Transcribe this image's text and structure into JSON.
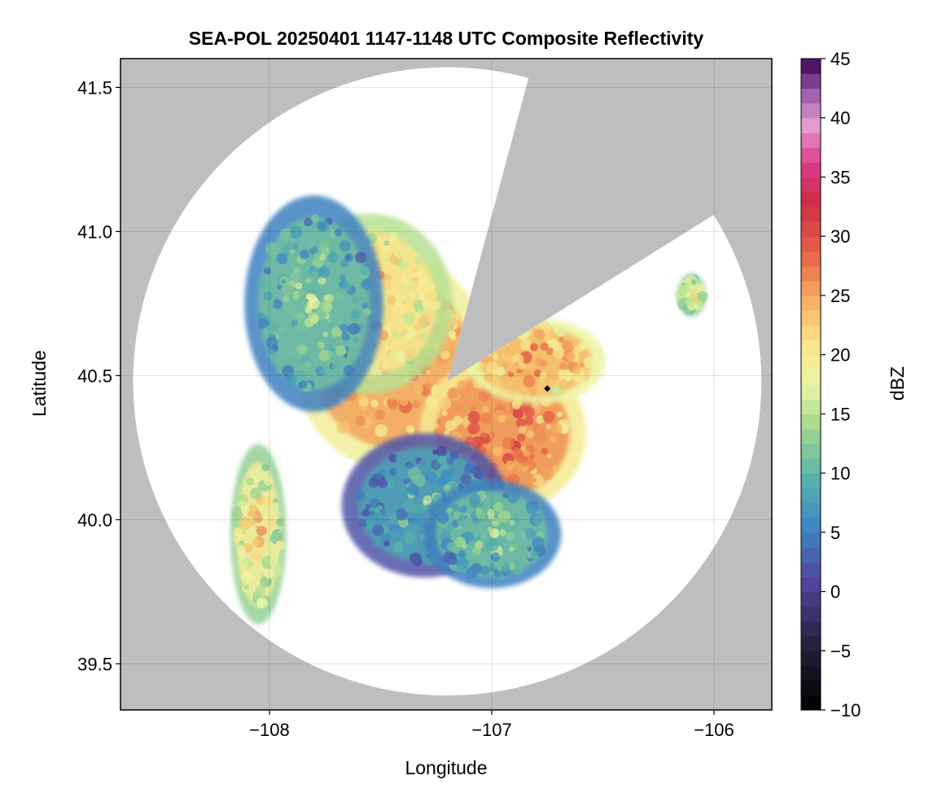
{
  "chart_data": {
    "type": "heatmap",
    "title": "SEA-POL 20250401 1147-1148 UTC Composite Reflectivity",
    "xlabel": "Longitude",
    "ylabel": "Latitude",
    "colorbar_label": "dBZ",
    "xlim": [
      -108.67,
      -105.74
    ],
    "ylim": [
      39.34,
      41.6
    ],
    "x_ticks": [
      -108,
      -107,
      -106
    ],
    "x_tick_labels": [
      "−108",
      "−107",
      "−106"
    ],
    "y_ticks": [
      39.5,
      40.0,
      40.5,
      41.0,
      41.5
    ],
    "y_tick_labels": [
      "39.5",
      "40.0",
      "40.5",
      "41.0",
      "41.5"
    ],
    "colorbar_range": [
      -10,
      45
    ],
    "colorbar_ticks": [
      -10,
      -5,
      0,
      5,
      10,
      15,
      20,
      25,
      30,
      35,
      40,
      45
    ],
    "colorbar_tick_labels": [
      "−10",
      "−5",
      "0",
      "5",
      "10",
      "15",
      "20",
      "25",
      "30",
      "35",
      "40",
      "45"
    ],
    "colormap": "Spectral_r",
    "grid": true,
    "background_color": "#bebebe",
    "radar_site": {
      "lon": -107.2,
      "lat": 40.48
    },
    "radar_range_deg_lat": 1.09,
    "blocked_sectors_azimuth_deg": [
      [
        15,
        58
      ]
    ],
    "marker": {
      "lon": -106.75,
      "lat": 40.455,
      "symbol": "diamond",
      "color": "#000000"
    },
    "echo_regions": [
      {
        "lon": -107.45,
        "lat": 40.55,
        "dbz": 29,
        "spread_lon": 0.35,
        "spread_lat": 0.3
      },
      {
        "lon": -107.55,
        "lat": 40.75,
        "dbz": 25,
        "spread_lon": 0.3,
        "spread_lat": 0.25
      },
      {
        "lon": -106.95,
        "lat": 40.3,
        "dbz": 30,
        "spread_lon": 0.3,
        "spread_lat": 0.22
      },
      {
        "lon": -106.8,
        "lat": 40.55,
        "dbz": 28,
        "spread_lon": 0.25,
        "spread_lat": 0.12
      },
      {
        "lon": -107.8,
        "lat": 40.75,
        "dbz": 15,
        "spread_lon": 0.25,
        "spread_lat": 0.3
      },
      {
        "lon": -107.3,
        "lat": 40.05,
        "dbz": 12,
        "spread_lon": 0.3,
        "spread_lat": 0.2
      },
      {
        "lon": -107.0,
        "lat": 39.95,
        "dbz": 15,
        "spread_lon": 0.25,
        "spread_lat": 0.15
      },
      {
        "lon": -108.05,
        "lat": 39.95,
        "dbz": 23,
        "spread_lon": 0.1,
        "spread_lat": 0.25
      },
      {
        "lon": -106.1,
        "lat": 40.78,
        "dbz": 22,
        "spread_lon": 0.05,
        "spread_lat": 0.06
      }
    ]
  }
}
